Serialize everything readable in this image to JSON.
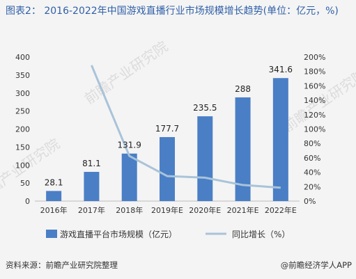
{
  "title": "图表2： 2016-2022年中国游戏直播行业市场规模增长趋势(单位：亿元，%)",
  "source": "资料来源：前瞻产业研究院整理",
  "credit": "@前瞻经济学人APP",
  "watermark": "前瞻产业研究院",
  "chart_data": {
    "type": "bar",
    "categories": [
      "2016年",
      "2017年",
      "2018年",
      "2019年E",
      "2020年E",
      "2021年E",
      "2022年E"
    ],
    "series": [
      {
        "name": "游戏直播平台市场规模（亿元）",
        "type": "bar",
        "axis": "left",
        "values": [
          28.1,
          81.1,
          131.9,
          177.7,
          235.5,
          288,
          341.6
        ],
        "labels": [
          "28.1",
          "81.1",
          "131.9",
          "177.7",
          "235.5",
          "288",
          "341.6"
        ],
        "color": "#4a7fc6"
      },
      {
        "name": "同比增长（%）",
        "type": "line",
        "axis": "right",
        "values": [
          null,
          188.6,
          62.6,
          34.7,
          32.5,
          22.3,
          18.6
        ],
        "color": "#a9c3d9"
      }
    ],
    "y_left": {
      "min": 0,
      "max": 400,
      "ticks": [
        "0",
        "50",
        "100",
        "150",
        "200",
        "250",
        "300",
        "350",
        "400"
      ]
    },
    "y_right": {
      "min": 0,
      "max": 200,
      "ticks": [
        "0%",
        "20%",
        "40%",
        "60%",
        "80%",
        "100%",
        "120%",
        "140%",
        "160%",
        "180%",
        "200%"
      ]
    },
    "grid": false,
    "legend_position": "bottom"
  }
}
